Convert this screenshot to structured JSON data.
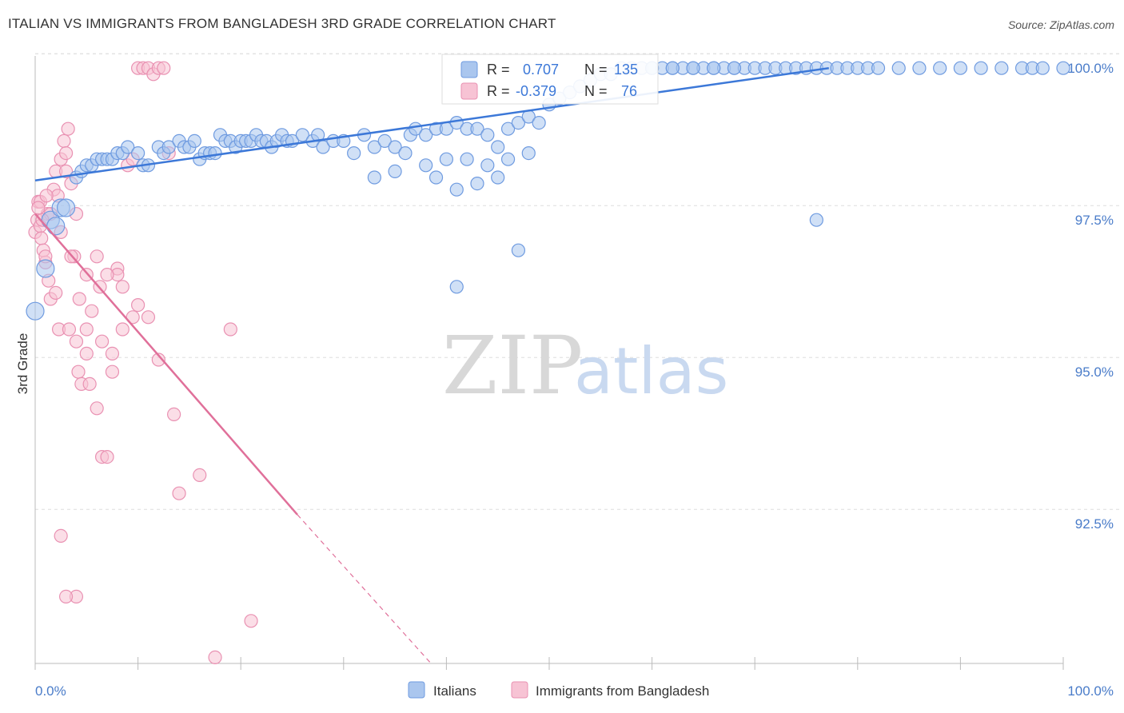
{
  "title": "ITALIAN VS IMMIGRANTS FROM BANGLADESH 3RD GRADE CORRELATION CHART",
  "source": "Source: ZipAtlas.com",
  "watermark": {
    "zip": "ZIP",
    "atlas": "atlas"
  },
  "colors": {
    "blue": "#3c78d8",
    "blue_fill": "#aac6ee",
    "blue_stroke": "#6f9be0",
    "pink": "#e0709a",
    "pink_fill": "#f7c3d4",
    "pink_stroke": "#e991b2",
    "grid": "#dddddd",
    "tick_text": "#4a7cc9"
  },
  "stats": {
    "blue": {
      "r_label": "R =",
      "r_value": "0.707",
      "n_label": "N =",
      "n_value": "135"
    },
    "pink": {
      "r_label": "R =",
      "r_value": "-0.379",
      "n_label": "N =",
      "n_value": "76"
    }
  },
  "chart_data": {
    "type": "scatter",
    "title": "ITALIAN VS IMMIGRANTS FROM BANGLADESH 3RD GRADE CORRELATION CHART",
    "xlabel": "",
    "ylabel": "3rd Grade",
    "xlim": [
      0,
      100
    ],
    "ylim": [
      90.2,
      100.2
    ],
    "x_tick_labels": [
      "0.0%",
      "100.0%"
    ],
    "y_ticks": [
      92.5,
      95.0,
      97.5,
      100.0
    ],
    "y_tick_labels": [
      "92.5%",
      "95.0%",
      "97.5%",
      "100.0%"
    ],
    "grid": true,
    "legend": [
      "Italians",
      "Immigrants from Bangladesh"
    ],
    "series": [
      {
        "name": "Italians",
        "r": 0.707,
        "n": 135,
        "trend": {
          "x0": 0,
          "y0": 98.15,
          "x1": 77.2,
          "y1": 100.0
        },
        "points": [
          [
            0,
            96.0
          ],
          [
            1,
            96.7
          ],
          [
            1.5,
            97.5
          ],
          [
            2,
            97.4
          ],
          [
            2.5,
            97.7
          ],
          [
            3,
            97.7
          ],
          [
            4,
            98.2
          ],
          [
            4.5,
            98.3
          ],
          [
            5,
            98.4
          ],
          [
            5.5,
            98.4
          ],
          [
            6,
            98.5
          ],
          [
            6.5,
            98.5
          ],
          [
            7,
            98.5
          ],
          [
            7.5,
            98.5
          ],
          [
            8,
            98.6
          ],
          [
            8.5,
            98.6
          ],
          [
            9,
            98.7
          ],
          [
            10,
            98.6
          ],
          [
            10.5,
            98.4
          ],
          [
            11,
            98.4
          ],
          [
            12,
            98.7
          ],
          [
            12.5,
            98.6
          ],
          [
            13,
            98.7
          ],
          [
            14,
            98.8
          ],
          [
            14.5,
            98.7
          ],
          [
            15,
            98.7
          ],
          [
            15.5,
            98.8
          ],
          [
            16,
            98.5
          ],
          [
            16.5,
            98.6
          ],
          [
            17,
            98.6
          ],
          [
            17.5,
            98.6
          ],
          [
            18,
            98.9
          ],
          [
            18.5,
            98.8
          ],
          [
            19,
            98.8
          ],
          [
            19.5,
            98.7
          ],
          [
            20,
            98.8
          ],
          [
            20.5,
            98.8
          ],
          [
            21,
            98.8
          ],
          [
            21.5,
            98.9
          ],
          [
            22,
            98.8
          ],
          [
            22.5,
            98.8
          ],
          [
            23,
            98.7
          ],
          [
            23.5,
            98.8
          ],
          [
            24,
            98.9
          ],
          [
            24.5,
            98.8
          ],
          [
            25,
            98.8
          ],
          [
            26,
            98.9
          ],
          [
            27,
            98.8
          ],
          [
            27.5,
            98.9
          ],
          [
            28,
            98.7
          ],
          [
            29,
            98.8
          ],
          [
            30,
            98.8
          ],
          [
            31,
            98.6
          ],
          [
            32,
            98.9
          ],
          [
            33,
            98.7
          ],
          [
            34,
            98.8
          ],
          [
            35,
            98.7
          ],
          [
            36,
            98.6
          ],
          [
            36.5,
            98.9
          ],
          [
            37,
            99.0
          ],
          [
            38,
            98.9
          ],
          [
            39,
            99.0
          ],
          [
            40,
            99.0
          ],
          [
            41,
            99.1
          ],
          [
            42,
            99.0
          ],
          [
            43,
            99.0
          ],
          [
            44,
            98.9
          ],
          [
            45,
            98.7
          ],
          [
            46,
            99.0
          ],
          [
            47,
            99.1
          ],
          [
            48,
            99.2
          ],
          [
            49,
            99.1
          ],
          [
            50,
            99.4
          ],
          [
            51,
            99.5
          ],
          [
            52,
            99.6
          ],
          [
            53,
            99.7
          ],
          [
            54,
            99.8
          ],
          [
            55,
            99.9
          ],
          [
            56,
            99.9
          ],
          [
            57,
            100.0
          ],
          [
            58,
            100.0
          ],
          [
            59,
            100.0
          ],
          [
            60,
            100.0
          ],
          [
            61,
            100.0
          ],
          [
            62,
            100.0
          ],
          [
            63,
            100.0
          ],
          [
            64,
            100.0
          ],
          [
            65,
            100.0
          ],
          [
            66,
            100.0
          ],
          [
            67,
            100.0
          ],
          [
            68,
            100.0
          ],
          [
            69,
            100.0
          ],
          [
            70,
            100.0
          ],
          [
            71,
            100.0
          ],
          [
            72,
            100.0
          ],
          [
            73,
            100.0
          ],
          [
            74,
            100.0
          ],
          [
            75,
            100.0
          ],
          [
            76,
            100.0
          ],
          [
            77,
            100.0
          ],
          [
            78,
            100.0
          ],
          [
            79,
            100.0
          ],
          [
            80,
            100.0
          ],
          [
            81,
            100.0
          ],
          [
            82,
            100.0
          ],
          [
            84,
            100.0
          ],
          [
            86,
            100.0
          ],
          [
            88,
            100.0
          ],
          [
            90,
            100.0
          ],
          [
            92,
            100.0
          ],
          [
            94,
            100.0
          ],
          [
            96,
            100.0
          ],
          [
            97,
            100.0
          ],
          [
            98,
            100.0
          ],
          [
            100,
            100.0
          ],
          [
            76,
            97.5
          ],
          [
            41,
            96.4
          ],
          [
            47,
            97.0
          ],
          [
            45,
            98.2
          ],
          [
            43,
            98.1
          ],
          [
            39,
            98.2
          ],
          [
            41,
            98.0
          ],
          [
            35,
            98.3
          ],
          [
            33,
            98.2
          ],
          [
            48,
            98.6
          ],
          [
            46,
            98.5
          ],
          [
            44,
            98.4
          ],
          [
            42,
            98.5
          ],
          [
            38,
            98.4
          ],
          [
            40,
            98.5
          ],
          [
            60,
            100.0
          ],
          [
            62,
            100.0
          ],
          [
            64,
            100.0
          ],
          [
            66,
            100.0
          ],
          [
            68,
            100.0
          ]
        ]
      },
      {
        "name": "Immigrants from Bangladesh",
        "r": -0.379,
        "n": 76,
        "trend": {
          "x0": 0,
          "y0": 97.6,
          "x1": 25.5,
          "y1": 92.65,
          "dash_x1": 38.5,
          "dash_y1": 90.2
        },
        "points": [
          [
            0,
            97.3
          ],
          [
            0.2,
            97.5
          ],
          [
            0.3,
            97.8
          ],
          [
            0.5,
            97.4
          ],
          [
            0.6,
            97.2
          ],
          [
            0.8,
            97.0
          ],
          [
            1,
            96.8
          ],
          [
            1.2,
            97.6
          ],
          [
            1.3,
            96.5
          ],
          [
            1.5,
            96.2
          ],
          [
            1.8,
            98.0
          ],
          [
            2,
            98.3
          ],
          [
            2.2,
            97.9
          ],
          [
            2.5,
            98.5
          ],
          [
            2.8,
            98.8
          ],
          [
            3,
            98.6
          ],
          [
            3.2,
            99.0
          ],
          [
            3.5,
            98.1
          ],
          [
            3.8,
            96.9
          ],
          [
            4,
            95.5
          ],
          [
            4.2,
            95.0
          ],
          [
            4.5,
            94.8
          ],
          [
            5,
            95.3
          ],
          [
            5.5,
            96.0
          ],
          [
            6,
            94.4
          ],
          [
            6.5,
            93.6
          ],
          [
            7,
            93.6
          ],
          [
            7.5,
            95.0
          ],
          [
            8,
            96.7
          ],
          [
            8.5,
            96.4
          ],
          [
            9,
            98.4
          ],
          [
            9.5,
            98.5
          ],
          [
            10,
            100.0
          ],
          [
            10.5,
            100.0
          ],
          [
            11,
            100.0
          ],
          [
            11.5,
            99.9
          ],
          [
            12,
            100.0
          ],
          [
            12.5,
            100.0
          ],
          [
            13,
            98.6
          ],
          [
            13.5,
            94.3
          ],
          [
            14,
            93.0
          ],
          [
            16,
            93.3
          ],
          [
            17.5,
            90.3
          ],
          [
            19,
            95.7
          ],
          [
            21,
            90.9
          ],
          [
            4,
            91.3
          ],
          [
            3,
            91.3
          ],
          [
            2.5,
            92.3
          ],
          [
            8,
            96.6
          ],
          [
            7,
            96.6
          ],
          [
            6,
            96.9
          ],
          [
            5,
            96.6
          ],
          [
            3.5,
            96.9
          ],
          [
            2,
            96.3
          ],
          [
            1,
            96.9
          ],
          [
            0.5,
            97.8
          ],
          [
            1.5,
            97.6
          ],
          [
            2.5,
            97.3
          ],
          [
            3,
            98.3
          ],
          [
            4,
            97.6
          ],
          [
            5,
            95.7
          ],
          [
            6.5,
            95.5
          ],
          [
            7.5,
            95.3
          ],
          [
            8.5,
            95.7
          ],
          [
            9.5,
            95.9
          ],
          [
            10,
            96.1
          ],
          [
            11,
            95.9
          ],
          [
            12,
            95.2
          ],
          [
            0.3,
            97.7
          ],
          [
            0.7,
            97.5
          ],
          [
            1.1,
            97.9
          ],
          [
            2.3,
            95.7
          ],
          [
            3.3,
            95.7
          ],
          [
            4.3,
            96.2
          ],
          [
            5.3,
            94.8
          ],
          [
            6.3,
            96.4
          ]
        ]
      }
    ]
  }
}
